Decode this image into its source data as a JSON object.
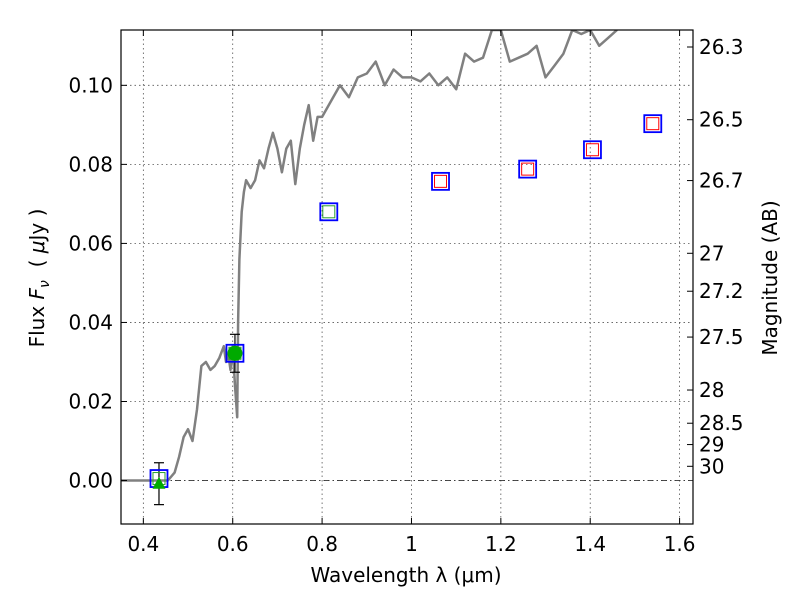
{
  "chart_data": {
    "type": "scatter",
    "xlabel": "Wavelength  λ (μm)",
    "ylabel": "Flux  F_ν  ( μJy )",
    "ylabel_parts": {
      "prefix": "Flux ",
      "var": "F",
      "sub": "ν",
      "unit_open": "  ( ",
      "unit_mu": "μ",
      "unit_rest": "Jy )"
    },
    "y2label": "Magnitude (AB)",
    "xlim": [
      0.35,
      1.63
    ],
    "ylim": [
      -0.011,
      0.114
    ],
    "grid": true,
    "x_ticks": [
      0.4,
      0.6,
      0.8,
      1.0,
      1.2,
      1.4,
      1.6
    ],
    "x_tick_labels": [
      "0.4",
      "0.6",
      "0.8",
      "1",
      "1.2",
      "1.4",
      "1.6"
    ],
    "y_ticks": [
      0.0,
      0.02,
      0.04,
      0.06,
      0.08,
      0.1
    ],
    "y_tick_labels": [
      "0.00",
      "0.02",
      "0.04",
      "0.06",
      "0.08",
      "0.10"
    ],
    "y2_ticks": [
      {
        "label": "26.3",
        "flux": 0.1097
      },
      {
        "label": "26.5",
        "flux": 0.0913
      },
      {
        "label": "26.7",
        "flux": 0.0759
      },
      {
        "label": "27",
        "flux": 0.0575
      },
      {
        "label": "27.2",
        "flux": 0.0479
      },
      {
        "label": "27.5",
        "flux": 0.0363
      },
      {
        "label": "28",
        "flux": 0.0229
      },
      {
        "label": "28.5",
        "flux": 0.0145
      },
      {
        "label": "29",
        "flux": 0.0091
      },
      {
        "label": "30",
        "flux": 0.0036
      }
    ],
    "zero_line": 0.0,
    "series": [
      {
        "kind": "sed",
        "color": "#808080",
        "x": [
          0.35,
          0.43,
          0.44,
          0.455,
          0.47,
          0.48,
          0.49,
          0.5,
          0.51,
          0.52,
          0.53,
          0.54,
          0.55,
          0.56,
          0.57,
          0.58,
          0.585,
          0.59,
          0.595,
          0.6,
          0.605,
          0.61,
          0.612,
          0.615,
          0.62,
          0.625,
          0.63,
          0.64,
          0.65,
          0.66,
          0.67,
          0.68,
          0.69,
          0.7,
          0.71,
          0.72,
          0.73,
          0.74,
          0.75,
          0.76,
          0.77,
          0.78,
          0.79,
          0.8,
          0.82,
          0.84,
          0.86,
          0.88,
          0.9,
          0.92,
          0.94,
          0.96,
          0.98,
          1.0,
          1.02,
          1.04,
          1.06,
          1.08,
          1.1,
          1.12,
          1.14,
          1.16,
          1.18,
          1.2,
          1.22,
          1.24,
          1.26,
          1.28,
          1.3,
          1.32,
          1.34,
          1.36,
          1.38,
          1.4,
          1.42,
          1.44,
          1.46
        ],
        "y": [
          0.0,
          0.0,
          0.0,
          0.0,
          0.002,
          0.006,
          0.011,
          0.013,
          0.01,
          0.018,
          0.029,
          0.03,
          0.028,
          0.029,
          0.031,
          0.034,
          0.03,
          0.032,
          0.028,
          0.034,
          0.024,
          0.016,
          0.04,
          0.056,
          0.068,
          0.073,
          0.076,
          0.074,
          0.076,
          0.081,
          0.079,
          0.084,
          0.088,
          0.084,
          0.078,
          0.084,
          0.086,
          0.075,
          0.084,
          0.09,
          0.095,
          0.086,
          0.092,
          0.092,
          0.096,
          0.1,
          0.097,
          0.102,
          0.103,
          0.106,
          0.1,
          0.104,
          0.102,
          0.102,
          0.101,
          0.103,
          0.1,
          0.102,
          0.099,
          0.108,
          0.106,
          0.107,
          0.114,
          0.114,
          0.106,
          0.107,
          0.108,
          0.11,
          0.102,
          0.105,
          0.108,
          0.114,
          0.113,
          0.114,
          0.11,
          0.112,
          0.114
        ]
      },
      {
        "kind": "blue_squares",
        "color": "#0000ff",
        "x": [
          0.435,
          0.605,
          0.815,
          1.065,
          1.26,
          1.405,
          1.54
        ],
        "y": [
          0.0005,
          0.0322,
          0.068,
          0.0757,
          0.0788,
          0.0837,
          0.0903
        ]
      },
      {
        "kind": "inner_squares",
        "colors": [
          "#2ca02c",
          "#2ca02c",
          "#2ca02c",
          "#ff0000",
          "#ff0000",
          "#ff0000",
          "#ff0000"
        ],
        "x": [
          0.435,
          0.605,
          0.815,
          1.065,
          1.26,
          1.405,
          1.54
        ],
        "y": [
          0.0005,
          0.0322,
          0.068,
          0.0757,
          0.0788,
          0.0837,
          0.0903
        ]
      },
      {
        "kind": "errorbar_points",
        "color": "#00aa00",
        "points": [
          {
            "x": 0.435,
            "y": -0.0008,
            "yerr": 0.0053,
            "marker": "triangle"
          },
          {
            "x": 0.605,
            "y": 0.0322,
            "yerr": 0.0048,
            "marker": "circle"
          }
        ]
      }
    ]
  }
}
